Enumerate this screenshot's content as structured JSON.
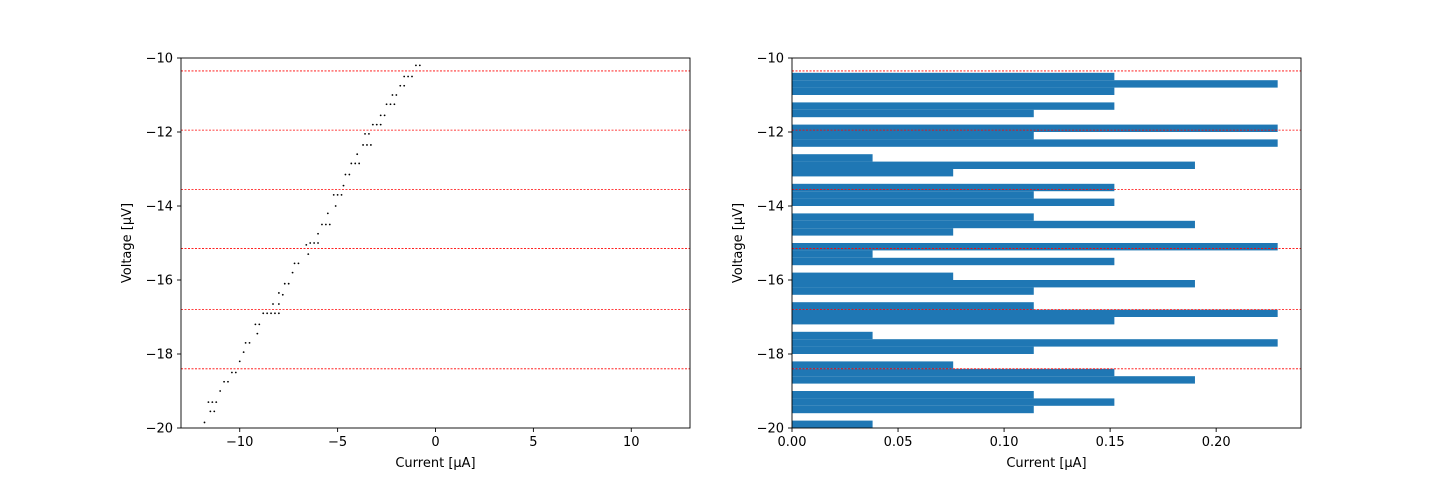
{
  "chart_data": [
    {
      "type": "scatter",
      "xlabel": "Current [µA]",
      "ylabel": "Voltage [µV]",
      "xlim": [
        -13,
        13
      ],
      "ylim": [
        -20,
        -10
      ],
      "xticks": [
        -10,
        -5,
        0,
        5,
        10
      ],
      "yticks": [
        -10,
        -12,
        -14,
        -16,
        -18,
        -20
      ],
      "xtick_labels": [
        "−10",
        "−5",
        "0",
        "5",
        "10"
      ],
      "ytick_labels": [
        "−10",
        "−12",
        "−14",
        "−16",
        "−18",
        "−20"
      ],
      "hlines": [
        -10.35,
        -11.95,
        -13.55,
        -15.15,
        -16.8,
        -18.4
      ],
      "hline_color": "#ff0000",
      "marker_color": "#000000",
      "grid": false,
      "points": [
        [
          -1.0,
          -10.2
        ],
        [
          -0.8,
          -10.2
        ],
        [
          -1.4,
          -10.5
        ],
        [
          -1.2,
          -10.5
        ],
        [
          -1.6,
          -10.5
        ],
        [
          -1.8,
          -10.75
        ],
        [
          -1.6,
          -10.75
        ],
        [
          -2.0,
          -11.0
        ],
        [
          -2.2,
          -11.0
        ],
        [
          -2.1,
          -11.25
        ],
        [
          -2.3,
          -11.25
        ],
        [
          -2.5,
          -11.25
        ],
        [
          -2.8,
          -11.55
        ],
        [
          -2.6,
          -11.55
        ],
        [
          -3.0,
          -11.8
        ],
        [
          -3.2,
          -11.8
        ],
        [
          -2.8,
          -11.8
        ],
        [
          -3.4,
          -12.05
        ],
        [
          -3.6,
          -12.05
        ],
        [
          -3.3,
          -12.35
        ],
        [
          -3.5,
          -12.35
        ],
        [
          -3.7,
          -12.35
        ],
        [
          -4.0,
          -12.6
        ],
        [
          -3.9,
          -12.85
        ],
        [
          -4.1,
          -12.85
        ],
        [
          -4.3,
          -12.85
        ],
        [
          -4.4,
          -13.15
        ],
        [
          -4.6,
          -13.15
        ],
        [
          -4.7,
          -13.45
        ],
        [
          -5.0,
          -13.7
        ],
        [
          -4.8,
          -13.7
        ],
        [
          -5.2,
          -13.7
        ],
        [
          -5.1,
          -14.0
        ],
        [
          -5.5,
          -14.2
        ],
        [
          -5.6,
          -14.5
        ],
        [
          -5.8,
          -14.5
        ],
        [
          -5.4,
          -14.5
        ],
        [
          -6.0,
          -14.75
        ],
        [
          -6.2,
          -15.0
        ],
        [
          -6.4,
          -15.0
        ],
        [
          -6.0,
          -15.0
        ],
        [
          -6.6,
          -15.05
        ],
        [
          -6.5,
          -15.3
        ],
        [
          -7.0,
          -15.55
        ],
        [
          -7.2,
          -15.55
        ],
        [
          -7.3,
          -15.8
        ],
        [
          -7.5,
          -16.1
        ],
        [
          -7.7,
          -16.1
        ],
        [
          -8.0,
          -16.35
        ],
        [
          -7.8,
          -16.4
        ],
        [
          -8.3,
          -16.65
        ],
        [
          -8.0,
          -16.65
        ],
        [
          -8.4,
          -16.9
        ],
        [
          -8.6,
          -16.9
        ],
        [
          -8.2,
          -16.9
        ],
        [
          -8.8,
          -16.9
        ],
        [
          -8.0,
          -16.9
        ],
        [
          -9.0,
          -17.2
        ],
        [
          -9.2,
          -17.2
        ],
        [
          -9.1,
          -17.45
        ],
        [
          -9.5,
          -17.7
        ],
        [
          -9.7,
          -17.7
        ],
        [
          -9.8,
          -17.95
        ],
        [
          -10.0,
          -18.2
        ],
        [
          -10.2,
          -18.5
        ],
        [
          -10.4,
          -18.5
        ],
        [
          -10.6,
          -18.75
        ],
        [
          -10.8,
          -18.75
        ],
        [
          -11.0,
          -19.0
        ],
        [
          -11.2,
          -19.3
        ],
        [
          -11.4,
          -19.3
        ],
        [
          -11.6,
          -19.3
        ],
        [
          -11.5,
          -19.55
        ],
        [
          -11.3,
          -19.55
        ],
        [
          -11.8,
          -19.85
        ]
      ]
    },
    {
      "type": "bar",
      "orientation": "horizontal",
      "xlabel": "Current [µA]",
      "ylabel": "Voltage [µV]",
      "xlim": [
        0,
        0.24
      ],
      "ylim": [
        -20,
        -10
      ],
      "xticks": [
        0.0,
        0.05,
        0.1,
        0.15,
        0.2
      ],
      "yticks": [
        -10,
        -12,
        -14,
        -16,
        -18,
        -20
      ],
      "xtick_labels": [
        "0.00",
        "0.05",
        "0.10",
        "0.15",
        "0.20"
      ],
      "ytick_labels": [
        "−10",
        "−12",
        "−14",
        "−16",
        "−18",
        "−20"
      ],
      "hlines": [
        -10.35,
        -11.95,
        -13.55,
        -15.15,
        -16.8,
        -18.4
      ],
      "hline_color": "#ff0000",
      "bar_color": "#1f77b4",
      "grid": false,
      "bars": [
        {
          "y0": -10.4,
          "y1": -10.6,
          "value": 0.152
        },
        {
          "y0": -10.6,
          "y1": -10.8,
          "value": 0.229
        },
        {
          "y0": -10.8,
          "y1": -11.0,
          "value": 0.152
        },
        {
          "y0": -11.2,
          "y1": -11.4,
          "value": 0.152
        },
        {
          "y0": -11.4,
          "y1": -11.6,
          "value": 0.114
        },
        {
          "y0": -11.8,
          "y1": -12.0,
          "value": 0.229
        },
        {
          "y0": -12.0,
          "y1": -12.2,
          "value": 0.114
        },
        {
          "y0": -12.2,
          "y1": -12.4,
          "value": 0.229
        },
        {
          "y0": -12.6,
          "y1": -12.8,
          "value": 0.038
        },
        {
          "y0": -12.8,
          "y1": -13.0,
          "value": 0.19
        },
        {
          "y0": -13.0,
          "y1": -13.2,
          "value": 0.076
        },
        {
          "y0": -13.4,
          "y1": -13.6,
          "value": 0.152
        },
        {
          "y0": -13.6,
          "y1": -13.8,
          "value": 0.114
        },
        {
          "y0": -13.8,
          "y1": -14.0,
          "value": 0.152
        },
        {
          "y0": -14.2,
          "y1": -14.4,
          "value": 0.114
        },
        {
          "y0": -14.4,
          "y1": -14.6,
          "value": 0.19
        },
        {
          "y0": -14.6,
          "y1": -14.8,
          "value": 0.076
        },
        {
          "y0": -15.0,
          "y1": -15.2,
          "value": 0.229
        },
        {
          "y0": -15.2,
          "y1": -15.4,
          "value": 0.038
        },
        {
          "y0": -15.4,
          "y1": -15.6,
          "value": 0.152
        },
        {
          "y0": -15.8,
          "y1": -16.0,
          "value": 0.076
        },
        {
          "y0": -16.0,
          "y1": -16.2,
          "value": 0.19
        },
        {
          "y0": -16.2,
          "y1": -16.4,
          "value": 0.114
        },
        {
          "y0": -16.6,
          "y1": -16.8,
          "value": 0.114
        },
        {
          "y0": -16.8,
          "y1": -17.0,
          "value": 0.229
        },
        {
          "y0": -17.0,
          "y1": -17.2,
          "value": 0.152
        },
        {
          "y0": -17.4,
          "y1": -17.6,
          "value": 0.038
        },
        {
          "y0": -17.6,
          "y1": -17.8,
          "value": 0.229
        },
        {
          "y0": -17.8,
          "y1": -18.0,
          "value": 0.114
        },
        {
          "y0": -18.2,
          "y1": -18.4,
          "value": 0.076
        },
        {
          "y0": -18.4,
          "y1": -18.6,
          "value": 0.152
        },
        {
          "y0": -18.6,
          "y1": -18.8,
          "value": 0.19
        },
        {
          "y0": -19.0,
          "y1": -19.2,
          "value": 0.114
        },
        {
          "y0": -19.2,
          "y1": -19.4,
          "value": 0.152
        },
        {
          "y0": -19.4,
          "y1": -19.6,
          "value": 0.114
        },
        {
          "y0": -19.8,
          "y1": -20.0,
          "value": 0.038
        }
      ]
    }
  ]
}
